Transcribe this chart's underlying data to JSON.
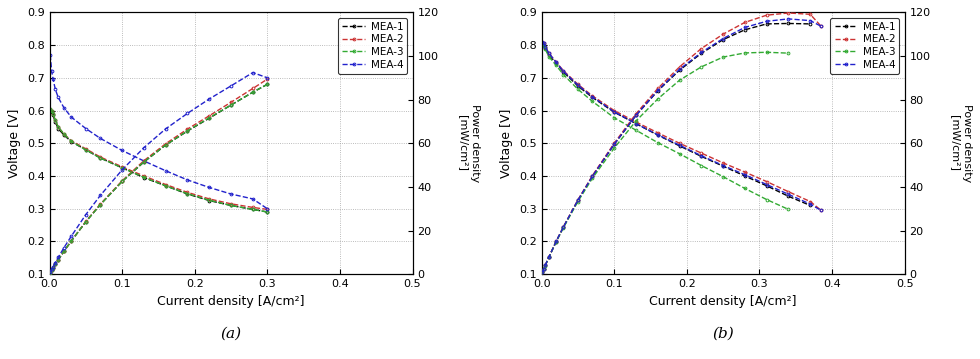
{
  "panel_a": {
    "mea_colors": [
      "#000000",
      "#cc3333",
      "#33aa33",
      "#2222cc"
    ],
    "mea_labels": [
      "MEA-1",
      "MEA-2",
      "MEA-3",
      "MEA-4"
    ],
    "voltage_curves": {
      "MEA-1": {
        "x": [
          0.001,
          0.003,
          0.005,
          0.008,
          0.012,
          0.02,
          0.03,
          0.05,
          0.07,
          0.1,
          0.13,
          0.16,
          0.19,
          0.22,
          0.25,
          0.28,
          0.3
        ],
        "y": [
          0.6,
          0.595,
          0.585,
          0.565,
          0.545,
          0.525,
          0.505,
          0.48,
          0.455,
          0.425,
          0.395,
          0.37,
          0.345,
          0.325,
          0.31,
          0.298,
          0.29
        ]
      },
      "MEA-2": {
        "x": [
          0.001,
          0.003,
          0.005,
          0.008,
          0.012,
          0.02,
          0.03,
          0.05,
          0.07,
          0.1,
          0.13,
          0.16,
          0.19,
          0.22,
          0.25,
          0.28,
          0.3
        ],
        "y": [
          0.605,
          0.598,
          0.59,
          0.57,
          0.55,
          0.528,
          0.508,
          0.483,
          0.458,
          0.428,
          0.4,
          0.374,
          0.35,
          0.33,
          0.315,
          0.304,
          0.298
        ]
      },
      "MEA-3": {
        "x": [
          0.001,
          0.003,
          0.005,
          0.008,
          0.012,
          0.02,
          0.03,
          0.05,
          0.07,
          0.1,
          0.13,
          0.16,
          0.19,
          0.22,
          0.25,
          0.28,
          0.3
        ],
        "y": [
          0.605,
          0.598,
          0.59,
          0.57,
          0.55,
          0.528,
          0.506,
          0.48,
          0.455,
          0.425,
          0.396,
          0.37,
          0.346,
          0.326,
          0.31,
          0.298,
          0.29
        ]
      },
      "MEA-4": {
        "x": [
          0.001,
          0.003,
          0.005,
          0.008,
          0.012,
          0.02,
          0.03,
          0.05,
          0.07,
          0.1,
          0.13,
          0.16,
          0.19,
          0.22,
          0.25,
          0.28,
          0.3
        ],
        "y": [
          0.77,
          0.72,
          0.695,
          0.665,
          0.64,
          0.608,
          0.58,
          0.545,
          0.515,
          0.478,
          0.446,
          0.416,
          0.388,
          0.365,
          0.345,
          0.33,
          0.3
        ]
      }
    },
    "power_curves": {
      "MEA-1": {
        "x": [
          0.001,
          0.003,
          0.005,
          0.008,
          0.012,
          0.02,
          0.03,
          0.05,
          0.07,
          0.1,
          0.13,
          0.16,
          0.19,
          0.22,
          0.25,
          0.28,
          0.3
        ],
        "y": [
          0.6,
          1.8,
          2.9,
          4.5,
          6.5,
          10.5,
          15.2,
          24.0,
          31.9,
          42.5,
          51.4,
          59.2,
          65.6,
          71.5,
          77.5,
          83.4,
          87.0
        ]
      },
      "MEA-2": {
        "x": [
          0.001,
          0.003,
          0.005,
          0.008,
          0.012,
          0.02,
          0.03,
          0.05,
          0.07,
          0.1,
          0.13,
          0.16,
          0.19,
          0.22,
          0.25,
          0.28,
          0.3
        ],
        "y": [
          0.6,
          1.8,
          3.0,
          4.6,
          6.6,
          10.6,
          15.2,
          24.2,
          32.1,
          42.8,
          52.0,
          59.8,
          66.5,
          72.6,
          78.8,
          85.1,
          89.4
        ]
      },
      "MEA-3": {
        "x": [
          0.001,
          0.003,
          0.005,
          0.008,
          0.012,
          0.02,
          0.03,
          0.05,
          0.07,
          0.1,
          0.13,
          0.16,
          0.19,
          0.22,
          0.25,
          0.28,
          0.3
        ],
        "y": [
          0.6,
          1.8,
          3.0,
          4.6,
          6.6,
          10.6,
          15.2,
          24.0,
          31.9,
          42.5,
          51.5,
          59.2,
          65.7,
          71.7,
          77.5,
          83.4,
          87.0
        ]
      },
      "MEA-4": {
        "x": [
          0.001,
          0.003,
          0.005,
          0.008,
          0.012,
          0.02,
          0.03,
          0.05,
          0.07,
          0.1,
          0.13,
          0.16,
          0.19,
          0.22,
          0.25,
          0.28,
          0.3
        ],
        "y": [
          0.8,
          2.2,
          3.5,
          5.3,
          7.7,
          12.2,
          17.4,
          27.3,
          36.1,
          47.8,
          58.0,
          66.6,
          73.7,
          80.3,
          86.3,
          92.4,
          90.0
        ]
      }
    }
  },
  "panel_b": {
    "mea_colors": [
      "#000000",
      "#cc3333",
      "#33aa33",
      "#2222cc"
    ],
    "mea_labels": [
      "MEA-1",
      "MEA-2",
      "MEA-3",
      "MEA-4"
    ],
    "voltage_curves": {
      "MEA-1": {
        "x": [
          0.001,
          0.003,
          0.005,
          0.01,
          0.02,
          0.03,
          0.05,
          0.07,
          0.1,
          0.13,
          0.16,
          0.19,
          0.22,
          0.25,
          0.28,
          0.31,
          0.34,
          0.37
        ],
        "y": [
          0.805,
          0.8,
          0.79,
          0.77,
          0.745,
          0.718,
          0.675,
          0.64,
          0.595,
          0.56,
          0.525,
          0.492,
          0.46,
          0.43,
          0.4,
          0.37,
          0.338,
          0.31
        ]
      },
      "MEA-2": {
        "x": [
          0.001,
          0.003,
          0.005,
          0.01,
          0.02,
          0.03,
          0.05,
          0.07,
          0.1,
          0.13,
          0.16,
          0.19,
          0.22,
          0.25,
          0.28,
          0.31,
          0.34,
          0.37,
          0.385
        ],
        "y": [
          0.81,
          0.805,
          0.795,
          0.775,
          0.748,
          0.722,
          0.68,
          0.645,
          0.6,
          0.565,
          0.532,
          0.5,
          0.47,
          0.44,
          0.412,
          0.383,
          0.352,
          0.322,
          0.295
        ]
      },
      "MEA-3": {
        "x": [
          0.001,
          0.003,
          0.005,
          0.01,
          0.02,
          0.03,
          0.05,
          0.07,
          0.1,
          0.13,
          0.16,
          0.19,
          0.22,
          0.25,
          0.28,
          0.31,
          0.34
        ],
        "y": [
          0.805,
          0.798,
          0.788,
          0.765,
          0.738,
          0.71,
          0.665,
          0.628,
          0.578,
          0.54,
          0.502,
          0.468,
          0.432,
          0.398,
          0.362,
          0.328,
          0.298
        ]
      },
      "MEA-4": {
        "x": [
          0.001,
          0.003,
          0.005,
          0.01,
          0.02,
          0.03,
          0.05,
          0.07,
          0.1,
          0.13,
          0.16,
          0.19,
          0.22,
          0.25,
          0.28,
          0.31,
          0.34,
          0.37,
          0.385
        ],
        "y": [
          0.81,
          0.805,
          0.795,
          0.775,
          0.748,
          0.72,
          0.678,
          0.642,
          0.596,
          0.56,
          0.526,
          0.494,
          0.462,
          0.432,
          0.404,
          0.374,
          0.344,
          0.314,
          0.295
        ]
      }
    },
    "power_curves": {
      "MEA-1": {
        "x": [
          0.001,
          0.003,
          0.005,
          0.01,
          0.02,
          0.03,
          0.05,
          0.07,
          0.1,
          0.13,
          0.16,
          0.19,
          0.22,
          0.25,
          0.28,
          0.31,
          0.34,
          0.37
        ],
        "y": [
          0.8,
          2.4,
          4.0,
          7.7,
          14.9,
          21.5,
          33.8,
          44.8,
          59.5,
          72.8,
          84.0,
          93.5,
          101.2,
          107.5,
          112.0,
          114.7,
          114.9,
          114.7
        ]
      },
      "MEA-2": {
        "x": [
          0.001,
          0.003,
          0.005,
          0.01,
          0.02,
          0.03,
          0.05,
          0.07,
          0.1,
          0.13,
          0.16,
          0.19,
          0.22,
          0.25,
          0.28,
          0.31,
          0.34,
          0.37,
          0.385
        ],
        "y": [
          0.8,
          2.4,
          4.0,
          7.8,
          15.0,
          21.7,
          34.0,
          45.2,
          60.0,
          73.5,
          85.1,
          95.0,
          103.4,
          110.0,
          115.4,
          118.7,
          119.7,
          119.1,
          113.6
        ]
      },
      "MEA-3": {
        "x": [
          0.001,
          0.003,
          0.005,
          0.01,
          0.02,
          0.03,
          0.05,
          0.07,
          0.1,
          0.13,
          0.16,
          0.19,
          0.22,
          0.25,
          0.28,
          0.31,
          0.34
        ],
        "y": [
          0.8,
          2.4,
          3.9,
          7.7,
          14.8,
          21.3,
          33.3,
          44.0,
          57.8,
          70.2,
          80.3,
          88.9,
          95.0,
          99.5,
          101.4,
          101.7,
          101.3
        ]
      },
      "MEA-4": {
        "x": [
          0.001,
          0.003,
          0.005,
          0.01,
          0.02,
          0.03,
          0.05,
          0.07,
          0.1,
          0.13,
          0.16,
          0.19,
          0.22,
          0.25,
          0.28,
          0.31,
          0.34,
          0.37,
          0.385
        ],
        "y": [
          0.8,
          2.4,
          4.0,
          7.8,
          15.0,
          21.6,
          33.9,
          44.9,
          59.6,
          72.8,
          84.2,
          93.9,
          101.6,
          108.0,
          113.1,
          115.9,
          117.0,
          116.2,
          113.6
        ]
      }
    }
  },
  "xlim": [
    0,
    0.5
  ],
  "ylim_voltage": [
    0.1,
    0.9
  ],
  "ylim_power": [
    0,
    120
  ],
  "xlabel": "Current density [A/cm²]",
  "ylabel_left": "Voltage [V]",
  "ylabel_right": "Power density\n[mW/cm²]",
  "xticks": [
    0.0,
    0.1,
    0.2,
    0.3,
    0.4,
    0.5
  ],
  "yticks_voltage": [
    0.1,
    0.2,
    0.3,
    0.4,
    0.5,
    0.6,
    0.7,
    0.8,
    0.9
  ],
  "yticks_power": [
    0,
    20,
    40,
    60,
    80,
    100,
    120
  ],
  "panel_labels": [
    "(a)",
    "(b)"
  ]
}
